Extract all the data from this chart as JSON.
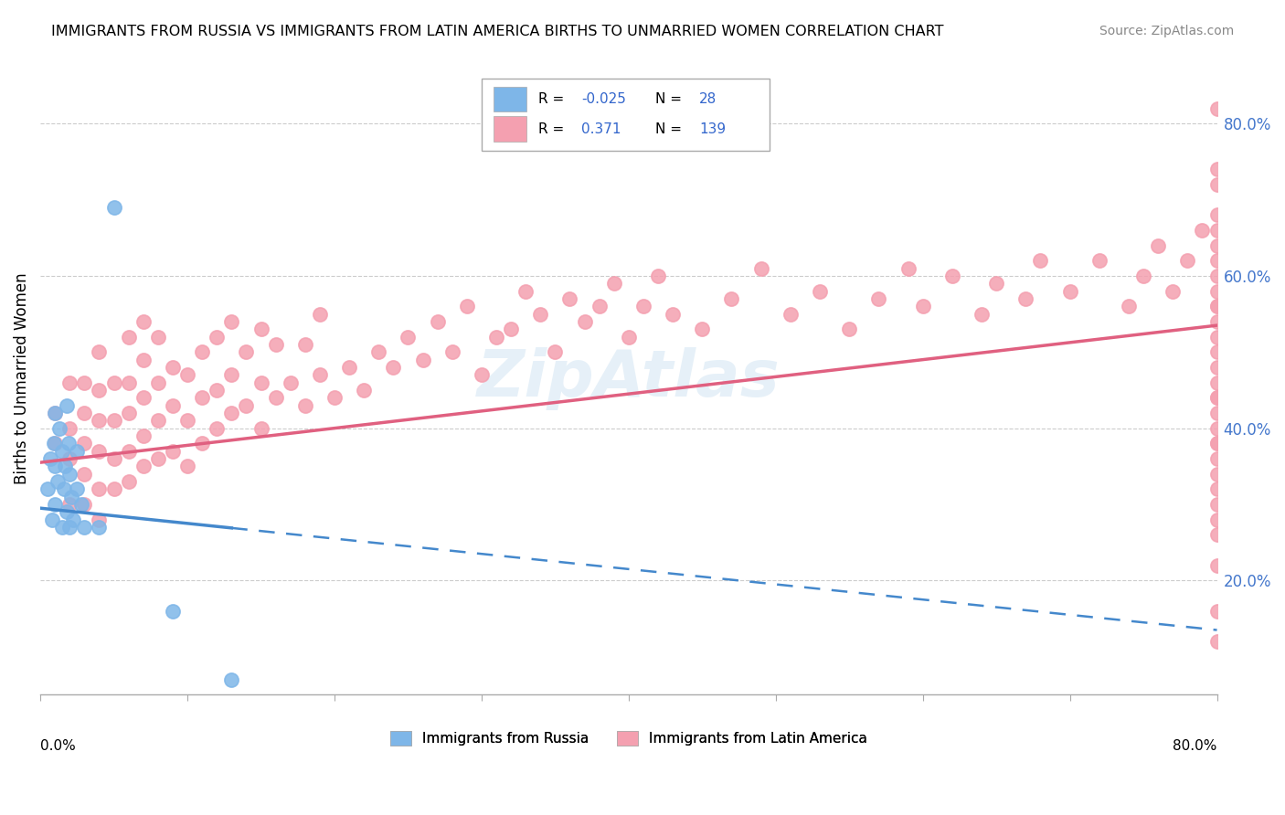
{
  "title": "IMMIGRANTS FROM RUSSIA VS IMMIGRANTS FROM LATIN AMERICA BIRTHS TO UNMARRIED WOMEN CORRELATION CHART",
  "source": "Source: ZipAtlas.com",
  "ylabel": "Births to Unmarried Women",
  "xlim": [
    0.0,
    0.8
  ],
  "ylim": [
    0.05,
    0.88
  ],
  "legend_russia_R": "-0.025",
  "legend_russia_N": "28",
  "legend_latin_R": "0.371",
  "legend_latin_N": "139",
  "russia_color": "#7eb6e8",
  "latin_color": "#f4a0b0",
  "russia_trend_color": "#4488cc",
  "latin_trend_color": "#e06080",
  "watermark": "ZipAtlas",
  "russia_x": [
    0.005,
    0.007,
    0.008,
    0.009,
    0.01,
    0.01,
    0.01,
    0.012,
    0.013,
    0.015,
    0.015,
    0.016,
    0.017,
    0.018,
    0.018,
    0.019,
    0.02,
    0.02,
    0.021,
    0.022,
    0.025,
    0.025,
    0.028,
    0.03,
    0.04,
    0.05,
    0.09,
    0.13
  ],
  "russia_y": [
    0.32,
    0.36,
    0.28,
    0.38,
    0.3,
    0.35,
    0.42,
    0.33,
    0.4,
    0.27,
    0.37,
    0.32,
    0.35,
    0.29,
    0.43,
    0.38,
    0.27,
    0.34,
    0.31,
    0.28,
    0.32,
    0.37,
    0.3,
    0.27,
    0.27,
    0.69,
    0.16,
    0.07
  ],
  "latin_x": [
    0.01,
    0.01,
    0.02,
    0.02,
    0.02,
    0.02,
    0.03,
    0.03,
    0.03,
    0.03,
    0.03,
    0.04,
    0.04,
    0.04,
    0.04,
    0.04,
    0.04,
    0.05,
    0.05,
    0.05,
    0.05,
    0.06,
    0.06,
    0.06,
    0.06,
    0.06,
    0.07,
    0.07,
    0.07,
    0.07,
    0.07,
    0.08,
    0.08,
    0.08,
    0.08,
    0.09,
    0.09,
    0.09,
    0.1,
    0.1,
    0.1,
    0.11,
    0.11,
    0.11,
    0.12,
    0.12,
    0.12,
    0.13,
    0.13,
    0.13,
    0.14,
    0.14,
    0.15,
    0.15,
    0.15,
    0.16,
    0.16,
    0.17,
    0.18,
    0.18,
    0.19,
    0.19,
    0.2,
    0.21,
    0.22,
    0.23,
    0.24,
    0.25,
    0.26,
    0.27,
    0.28,
    0.29,
    0.3,
    0.31,
    0.32,
    0.33,
    0.34,
    0.35,
    0.36,
    0.37,
    0.38,
    0.39,
    0.4,
    0.41,
    0.42,
    0.43,
    0.45,
    0.47,
    0.49,
    0.51,
    0.53,
    0.55,
    0.57,
    0.59,
    0.6,
    0.62,
    0.64,
    0.65,
    0.67,
    0.68,
    0.7,
    0.72,
    0.74,
    0.75,
    0.76,
    0.77,
    0.78,
    0.79,
    0.8,
    0.8,
    0.8,
    0.8,
    0.8,
    0.8,
    0.8,
    0.8,
    0.8,
    0.8,
    0.8,
    0.8,
    0.8,
    0.8,
    0.8,
    0.8,
    0.8,
    0.8,
    0.8,
    0.8,
    0.8,
    0.8,
    0.8,
    0.8,
    0.8,
    0.8,
    0.8,
    0.8,
    0.8,
    0.8,
    0.8
  ],
  "latin_y": [
    0.38,
    0.42,
    0.3,
    0.36,
    0.4,
    0.46,
    0.3,
    0.34,
    0.38,
    0.42,
    0.46,
    0.28,
    0.32,
    0.37,
    0.41,
    0.45,
    0.5,
    0.32,
    0.36,
    0.41,
    0.46,
    0.33,
    0.37,
    0.42,
    0.46,
    0.52,
    0.35,
    0.39,
    0.44,
    0.49,
    0.54,
    0.36,
    0.41,
    0.46,
    0.52,
    0.37,
    0.43,
    0.48,
    0.35,
    0.41,
    0.47,
    0.38,
    0.44,
    0.5,
    0.4,
    0.45,
    0.52,
    0.42,
    0.47,
    0.54,
    0.43,
    0.5,
    0.4,
    0.46,
    0.53,
    0.44,
    0.51,
    0.46,
    0.43,
    0.51,
    0.47,
    0.55,
    0.44,
    0.48,
    0.45,
    0.5,
    0.48,
    0.52,
    0.49,
    0.54,
    0.5,
    0.56,
    0.47,
    0.52,
    0.53,
    0.58,
    0.55,
    0.5,
    0.57,
    0.54,
    0.56,
    0.59,
    0.52,
    0.56,
    0.6,
    0.55,
    0.53,
    0.57,
    0.61,
    0.55,
    0.58,
    0.53,
    0.57,
    0.61,
    0.56,
    0.6,
    0.55,
    0.59,
    0.57,
    0.62,
    0.58,
    0.62,
    0.56,
    0.6,
    0.64,
    0.58,
    0.62,
    0.66,
    0.82,
    0.64,
    0.56,
    0.44,
    0.38,
    0.32,
    0.26,
    0.48,
    0.56,
    0.62,
    0.68,
    0.74,
    0.52,
    0.46,
    0.4,
    0.34,
    0.28,
    0.22,
    0.58,
    0.66,
    0.72,
    0.44,
    0.5,
    0.38,
    0.42,
    0.6,
    0.3,
    0.54,
    0.36,
    0.16,
    0.12
  ]
}
